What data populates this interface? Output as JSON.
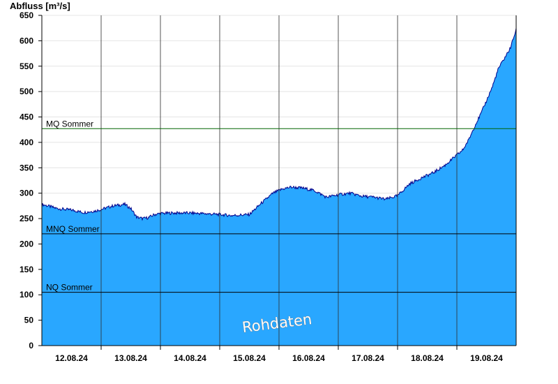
{
  "chart_data": {
    "type": "area",
    "ylabel": "Abfluss [m³/s]",
    "ylim": [
      0,
      650
    ],
    "yticks": [
      0,
      50,
      100,
      150,
      200,
      250,
      300,
      350,
      400,
      450,
      500,
      550,
      600,
      650
    ],
    "xlim": [
      11.5,
      19.5
    ],
    "day_separators": [
      12.5,
      13.5,
      14.5,
      15.5,
      16.5,
      17.5,
      18.5
    ],
    "xticks": [
      {
        "x": 12,
        "label": "12.08.24"
      },
      {
        "x": 13,
        "label": "13.08.24"
      },
      {
        "x": 14,
        "label": "14.08.24"
      },
      {
        "x": 15,
        "label": "15.08.24"
      },
      {
        "x": 16,
        "label": "16.08.24"
      },
      {
        "x": 17,
        "label": "17.08.24"
      },
      {
        "x": 18,
        "label": "18.08.24"
      },
      {
        "x": 19,
        "label": "19.08.24"
      }
    ],
    "grid": true,
    "area_color": "#29a7ff",
    "line_color": "#00008b",
    "reference_lines": [
      {
        "name": "MQ Sommer",
        "value": 427,
        "color": "#006400"
      },
      {
        "name": "MNQ Sommer",
        "value": 220,
        "color": "#000000"
      },
      {
        "name": "NQ Sommer",
        "value": 105,
        "color": "#000000"
      }
    ],
    "watermark": "Rohdaten",
    "series": [
      {
        "x": [
          11.5,
          11.6,
          11.75,
          11.9,
          12.0,
          12.2,
          12.4,
          12.5,
          12.7,
          12.9,
          13.0,
          13.1,
          13.2,
          13.3,
          13.4,
          13.5,
          13.7,
          14.0,
          14.2,
          14.5,
          14.7,
          15.0,
          15.2,
          15.4,
          15.55,
          15.7,
          15.9,
          16.1,
          16.3,
          16.5,
          16.7,
          16.9,
          17.1,
          17.3,
          17.5,
          17.7,
          17.9,
          18.1,
          18.3,
          18.5,
          18.6,
          18.7,
          18.8,
          18.9,
          19.0,
          19.1,
          19.2,
          19.3,
          19.4,
          19.5
        ],
        "y": [
          278,
          275,
          270,
          268,
          267,
          262,
          265,
          268,
          275,
          278,
          270,
          253,
          250,
          252,
          258,
          260,
          261,
          261,
          260,
          258,
          256,
          258,
          280,
          300,
          308,
          312,
          310,
          305,
          292,
          297,
          300,
          294,
          292,
          288,
          295,
          318,
          330,
          340,
          355,
          375,
          385,
          405,
          432,
          455,
          482,
          510,
          545,
          565,
          585,
          622
        ]
      }
    ]
  }
}
